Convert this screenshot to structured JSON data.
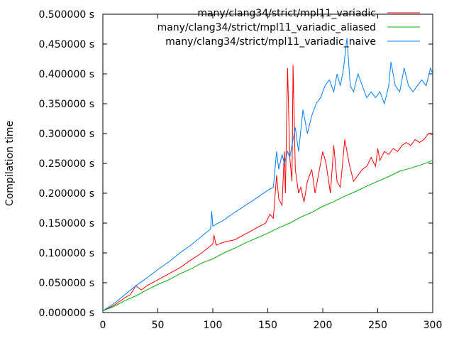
{
  "chart_data": {
    "type": "line",
    "ylabel": "Compilation time",
    "xlabel": "",
    "xlim": [
      0,
      300
    ],
    "ylim": [
      0,
      0.5
    ],
    "grid": false,
    "legend_position": "top-right",
    "x_ticks": [
      "0",
      "50",
      "100",
      "150",
      "200",
      "250",
      "300"
    ],
    "y_ticks": [
      "0.000000 s",
      "0.050000 s",
      "0.100000 s",
      "0.150000 s",
      "0.200000 s",
      "0.250000 s",
      "0.300000 s",
      "0.350000 s",
      "0.400000 s",
      "0.450000 s",
      "0.500000 s"
    ],
    "series": [
      {
        "name": "many/clang34/strict/mpl11_variadic",
        "color": "#ff0000",
        "points": [
          [
            0,
            0.003
          ],
          [
            10,
            0.012
          ],
          [
            20,
            0.025
          ],
          [
            25,
            0.03
          ],
          [
            30,
            0.045
          ],
          [
            35,
            0.038
          ],
          [
            40,
            0.045
          ],
          [
            50,
            0.055
          ],
          [
            60,
            0.065
          ],
          [
            70,
            0.075
          ],
          [
            80,
            0.088
          ],
          [
            90,
            0.1
          ],
          [
            100,
            0.115
          ],
          [
            101,
            0.13
          ],
          [
            103,
            0.113
          ],
          [
            110,
            0.118
          ],
          [
            120,
            0.122
          ],
          [
            130,
            0.132
          ],
          [
            140,
            0.142
          ],
          [
            148,
            0.15
          ],
          [
            152,
            0.165
          ],
          [
            155,
            0.158
          ],
          [
            158,
            0.23
          ],
          [
            160,
            0.19
          ],
          [
            163,
            0.18
          ],
          [
            165,
            0.27
          ],
          [
            166,
            0.2
          ],
          [
            168,
            0.41
          ],
          [
            170,
            0.26
          ],
          [
            172,
            0.22
          ],
          [
            173,
            0.415
          ],
          [
            175,
            0.24
          ],
          [
            178,
            0.2
          ],
          [
            180,
            0.21
          ],
          [
            183,
            0.185
          ],
          [
            186,
            0.22
          ],
          [
            190,
            0.24
          ],
          [
            193,
            0.2
          ],
          [
            196,
            0.23
          ],
          [
            200,
            0.27
          ],
          [
            203,
            0.25
          ],
          [
            207,
            0.2
          ],
          [
            210,
            0.28
          ],
          [
            213,
            0.22
          ],
          [
            216,
            0.21
          ],
          [
            220,
            0.29
          ],
          [
            224,
            0.25
          ],
          [
            228,
            0.22
          ],
          [
            232,
            0.23
          ],
          [
            236,
            0.24
          ],
          [
            240,
            0.245
          ],
          [
            244,
            0.26
          ],
          [
            248,
            0.245
          ],
          [
            250,
            0.275
          ],
          [
            252,
            0.255
          ],
          [
            256,
            0.27
          ],
          [
            260,
            0.265
          ],
          [
            264,
            0.275
          ],
          [
            268,
            0.27
          ],
          [
            272,
            0.28
          ],
          [
            276,
            0.285
          ],
          [
            280,
            0.28
          ],
          [
            284,
            0.29
          ],
          [
            288,
            0.285
          ],
          [
            292,
            0.29
          ],
          [
            296,
            0.3
          ],
          [
            300,
            0.298
          ]
        ]
      },
      {
        "name": "many/clang34/strict/mpl11_variadic_aliased",
        "color": "#00b000",
        "points": [
          [
            0,
            0.003
          ],
          [
            10,
            0.01
          ],
          [
            20,
            0.02
          ],
          [
            30,
            0.028
          ],
          [
            40,
            0.038
          ],
          [
            50,
            0.047
          ],
          [
            60,
            0.055
          ],
          [
            70,
            0.065
          ],
          [
            80,
            0.073
          ],
          [
            90,
            0.083
          ],
          [
            100,
            0.09
          ],
          [
            110,
            0.1
          ],
          [
            120,
            0.108
          ],
          [
            130,
            0.117
          ],
          [
            140,
            0.125
          ],
          [
            150,
            0.133
          ],
          [
            160,
            0.142
          ],
          [
            170,
            0.15
          ],
          [
            180,
            0.16
          ],
          [
            190,
            0.168
          ],
          [
            200,
            0.178
          ],
          [
            210,
            0.186
          ],
          [
            220,
            0.195
          ],
          [
            230,
            0.203
          ],
          [
            240,
            0.212
          ],
          [
            250,
            0.22
          ],
          [
            260,
            0.228
          ],
          [
            270,
            0.237
          ],
          [
            280,
            0.242
          ],
          [
            290,
            0.248
          ],
          [
            300,
            0.255
          ]
        ]
      },
      {
        "name": "many/clang34/strict/mpl11_variadic_naive",
        "color": "#0080ff",
        "points": [
          [
            0,
            0.003
          ],
          [
            10,
            0.015
          ],
          [
            20,
            0.03
          ],
          [
            30,
            0.045
          ],
          [
            40,
            0.058
          ],
          [
            50,
            0.072
          ],
          [
            60,
            0.085
          ],
          [
            70,
            0.1
          ],
          [
            80,
            0.113
          ],
          [
            90,
            0.128
          ],
          [
            98,
            0.14
          ],
          [
            99,
            0.17
          ],
          [
            100,
            0.145
          ],
          [
            110,
            0.155
          ],
          [
            120,
            0.168
          ],
          [
            130,
            0.18
          ],
          [
            140,
            0.192
          ],
          [
            150,
            0.205
          ],
          [
            155,
            0.21
          ],
          [
            158,
            0.27
          ],
          [
            160,
            0.24
          ],
          [
            163,
            0.265
          ],
          [
            165,
            0.25
          ],
          [
            168,
            0.27
          ],
          [
            170,
            0.26
          ],
          [
            173,
            0.29
          ],
          [
            175,
            0.31
          ],
          [
            178,
            0.27
          ],
          [
            182,
            0.34
          ],
          [
            186,
            0.3
          ],
          [
            190,
            0.33
          ],
          [
            194,
            0.35
          ],
          [
            198,
            0.36
          ],
          [
            202,
            0.38
          ],
          [
            206,
            0.39
          ],
          [
            210,
            0.37
          ],
          [
            213,
            0.4
          ],
          [
            216,
            0.38
          ],
          [
            219,
            0.41
          ],
          [
            222,
            0.46
          ],
          [
            225,
            0.38
          ],
          [
            228,
            0.37
          ],
          [
            232,
            0.4
          ],
          [
            236,
            0.38
          ],
          [
            240,
            0.36
          ],
          [
            244,
            0.37
          ],
          [
            248,
            0.36
          ],
          [
            252,
            0.37
          ],
          [
            256,
            0.35
          ],
          [
            260,
            0.38
          ],
          [
            262,
            0.42
          ],
          [
            266,
            0.38
          ],
          [
            270,
            0.37
          ],
          [
            274,
            0.41
          ],
          [
            278,
            0.38
          ],
          [
            282,
            0.37
          ],
          [
            286,
            0.38
          ],
          [
            290,
            0.39
          ],
          [
            294,
            0.38
          ],
          [
            298,
            0.41
          ],
          [
            300,
            0.4
          ]
        ]
      }
    ]
  }
}
